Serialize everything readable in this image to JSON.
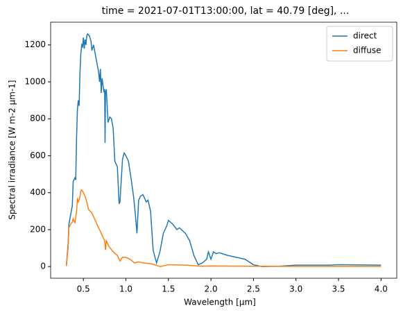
{
  "chart_data": {
    "type": "line",
    "title": "time = 2021-07-01T13:00:00, lat = 40.79 [deg], ...",
    "xlabel": "Wavelength [µm]",
    "ylabel": "Spectral irradiance [W m-2 µm-1]",
    "xlim": [
      0.115,
      4.185
    ],
    "ylim": [
      -63,
      1323
    ],
    "xticks": [
      0.5,
      {
        "value": 1,
        "label": "1.0"
      },
      1.5,
      {
        "value": 2,
        "label": "2.0"
      },
      2.5,
      {
        "value": 3,
        "label": "3.0"
      },
      3.5,
      {
        "value": 4,
        "label": "4.0"
      }
    ],
    "yticks": [
      0,
      200,
      400,
      600,
      800,
      1000,
      1200
    ],
    "legend": "upper right",
    "series": [
      {
        "name": "direct",
        "color": "#1f77b4",
        "x": [
          0.3,
          0.32,
          0.33,
          0.35,
          0.37,
          0.38,
          0.4,
          0.41,
          0.42,
          0.43,
          0.44,
          0.45,
          0.46,
          0.47,
          0.48,
          0.49,
          0.5,
          0.51,
          0.52,
          0.53,
          0.54,
          0.55,
          0.57,
          0.59,
          0.6,
          0.62,
          0.64,
          0.66,
          0.68,
          0.69,
          0.7,
          0.71,
          0.72,
          0.74,
          0.75,
          0.755,
          0.76,
          0.77,
          0.79,
          0.81,
          0.83,
          0.85,
          0.87,
          0.9,
          0.92,
          0.93,
          0.96,
          0.98,
          1.0,
          1.03,
          1.06,
          1.09,
          1.11,
          1.13,
          1.15,
          1.17,
          1.2,
          1.24,
          1.26,
          1.29,
          1.32,
          1.36,
          1.4,
          1.44,
          1.48,
          1.5,
          1.55,
          1.6,
          1.63,
          1.7,
          1.75,
          1.8,
          1.85,
          1.9,
          1.95,
          1.97,
          2.0,
          2.03,
          2.06,
          2.1,
          2.2,
          2.3,
          2.4,
          2.5,
          2.6,
          2.8,
          3.0,
          3.2,
          3.4,
          3.5,
          4.0
        ],
        "values": [
          5,
          120,
          230,
          280,
          330,
          460,
          480,
          470,
          700,
          850,
          900,
          870,
          1050,
          1150,
          1200,
          1190,
          1240,
          1180,
          1230,
          1200,
          1250,
          1260,
          1250,
          1220,
          1170,
          1200,
          1150,
          1100,
          1050,
          1000,
          1070,
          940,
          1020,
          950,
          960,
          670,
          940,
          960,
          780,
          810,
          800,
          750,
          570,
          540,
          340,
          350,
          580,
          615,
          600,
          570,
          480,
          380,
          290,
          180,
          360,
          380,
          390,
          350,
          360,
          300,
          90,
          20,
          80,
          180,
          220,
          250,
          230,
          200,
          210,
          180,
          140,
          60,
          10,
          20,
          40,
          80,
          40,
          80,
          70,
          75,
          60,
          50,
          40,
          10,
          0,
          2,
          8,
          8,
          8,
          10,
          8
        ]
      },
      {
        "name": "diffuse",
        "color": "#ff7f0e",
        "x": [
          0.3,
          0.32,
          0.33,
          0.35,
          0.37,
          0.38,
          0.4,
          0.42,
          0.43,
          0.44,
          0.45,
          0.46,
          0.47,
          0.48,
          0.5,
          0.52,
          0.54,
          0.56,
          0.6,
          0.65,
          0.7,
          0.75,
          0.76,
          0.77,
          0.8,
          0.85,
          0.9,
          0.93,
          0.96,
          1.0,
          1.05,
          1.1,
          1.15,
          1.2,
          1.3,
          1.35,
          1.4,
          1.5,
          1.7,
          1.9,
          2.0,
          2.5,
          3.0,
          4.0
        ],
        "values": [
          3,
          100,
          210,
          230,
          240,
          260,
          235,
          300,
          370,
          350,
          360,
          380,
          410,
          415,
          400,
          380,
          350,
          310,
          290,
          240,
          190,
          140,
          90,
          140,
          110,
          80,
          60,
          30,
          50,
          50,
          40,
          20,
          25,
          20,
          15,
          8,
          0,
          10,
          8,
          2,
          3,
          2,
          1,
          1
        ]
      }
    ]
  }
}
